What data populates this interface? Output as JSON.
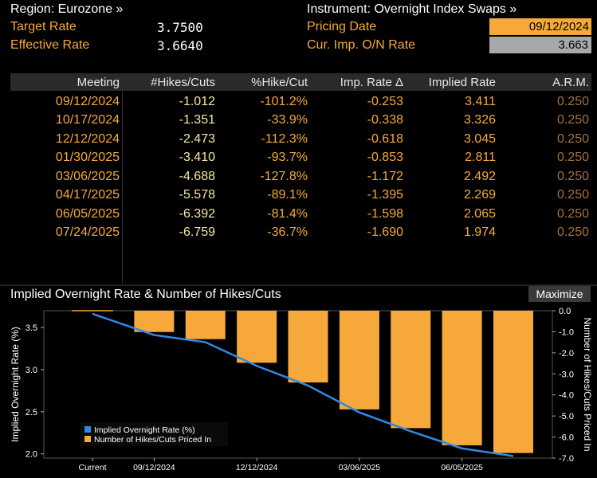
{
  "header": {
    "region_label": "Region: Eurozone »",
    "instrument_label": "Instrument: Overnight Index Swaps »",
    "target_rate_label": "Target Rate",
    "target_rate_value": "3.7500",
    "effective_rate_label": "Effective Rate",
    "effective_rate_value": "3.6640",
    "pricing_date_label": "Pricing Date",
    "pricing_date_value": "09/12/2024",
    "cur_imp_label": "Cur. Imp. O/N Rate",
    "cur_imp_value": "3.663"
  },
  "table": {
    "columns": [
      "Meeting",
      "#Hikes/Cuts",
      "%Hike/Cut",
      "Imp. Rate Δ",
      "Implied Rate",
      "A.R.M."
    ],
    "rows": [
      [
        "09/12/2024",
        "-1.012",
        "-101.2%",
        "-0.253",
        "3.411",
        "0.250"
      ],
      [
        "10/17/2024",
        "-1.351",
        "-33.9%",
        "-0.338",
        "3.326",
        "0.250"
      ],
      [
        "12/12/2024",
        "-2.473",
        "-112.3%",
        "-0.618",
        "3.045",
        "0.250"
      ],
      [
        "01/30/2025",
        "-3.410",
        "-93.7%",
        "-0.853",
        "2.811",
        "0.250"
      ],
      [
        "03/06/2025",
        "-4.688",
        "-127.8%",
        "-1.172",
        "2.492",
        "0.250"
      ],
      [
        "04/17/2025",
        "-5.578",
        "-89.1%",
        "-1.395",
        "2.269",
        "0.250"
      ],
      [
        "06/05/2025",
        "-6.392",
        "-81.4%",
        "-1.598",
        "2.065",
        "0.250"
      ],
      [
        "07/24/2025",
        "-6.759",
        "-36.7%",
        "-1.690",
        "1.974",
        "0.250"
      ]
    ]
  },
  "chart_title": "Implied Overnight Rate & Number of Hikes/Cuts",
  "maximize_label": "Maximize",
  "colors": {
    "orange": "#f6a93a",
    "blue": "#2e8ae6",
    "yellow": "#f7e6a1"
  },
  "chart_data": {
    "type": "bar",
    "categories": [
      "Current",
      "09/12/2024",
      "10/17/2024",
      "12/12/2024",
      "01/30/2025",
      "03/06/2025",
      "04/17/2025",
      "06/05/2025",
      "07/24/2025"
    ],
    "x_tick_labels": [
      "Current",
      "09/12/2024",
      "12/12/2024",
      "03/06/2025",
      "06/05/2025"
    ],
    "series": [
      {
        "name": "Implied Overnight Rate (%)",
        "type": "line",
        "axis": "left",
        "values": [
          3.663,
          3.411,
          3.326,
          3.045,
          2.811,
          2.492,
          2.269,
          2.065,
          1.974
        ]
      },
      {
        "name": "Number of Hikes/Cuts Priced In",
        "type": "bar",
        "axis": "right",
        "values": [
          0.0,
          -1.012,
          -1.351,
          -2.473,
          -3.41,
          -4.688,
          -5.578,
          -6.392,
          -6.759
        ]
      }
    ],
    "ylabel_left": "Implied Overnight Rate (%)",
    "ylabel_right": "Number of Hikes/Cuts Priced In",
    "ylim_left": [
      1.95,
      3.7
    ],
    "ylim_right": [
      -7.0,
      0.0
    ],
    "left_ticks": [
      "3.5",
      "3.0",
      "2.5",
      "2.0"
    ],
    "right_ticks": [
      "0.0",
      "-1.0",
      "-2.0",
      "-3.0",
      "-4.0",
      "-5.0",
      "-6.0",
      "-7.0"
    ],
    "legend_position": "bottom-left"
  }
}
